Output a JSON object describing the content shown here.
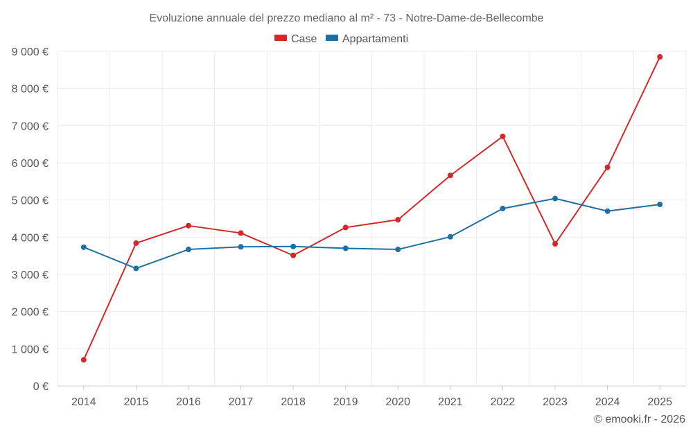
{
  "chart_data": {
    "type": "line",
    "title": "Evoluzione annuale del prezzo mediano al m² - 73 - Notre-Dame-de-Bellecombe",
    "categories": [
      "2014",
      "2015",
      "2016",
      "2017",
      "2018",
      "2019",
      "2020",
      "2021",
      "2022",
      "2023",
      "2024",
      "2025"
    ],
    "series": [
      {
        "name": "Case",
        "color": "#d62728",
        "values": [
          700,
          3840,
          4310,
          4110,
          3510,
          4260,
          4470,
          5660,
          6710,
          3820,
          5880,
          8850
        ]
      },
      {
        "name": "Appartamenti",
        "color": "#1f6fa3",
        "values": [
          3730,
          3160,
          3670,
          3740,
          3750,
          3700,
          3670,
          4010,
          4770,
          5040,
          4700,
          4880
        ]
      }
    ],
    "ylim": [
      0,
      9000
    ],
    "yticks": [
      0,
      1000,
      2000,
      3000,
      4000,
      5000,
      6000,
      7000,
      8000,
      9000
    ],
    "ytick_labels": [
      "0 €",
      "1 000 €",
      "2 000 €",
      "3 000 €",
      "4 000 €",
      "5 000 €",
      "6 000 €",
      "7 000 €",
      "8 000 €",
      "9 000 €"
    ],
    "xlabel": "",
    "ylabel": "",
    "grid": true,
    "legend_position": "top-center",
    "credit": "© emooki.fr - 2026"
  }
}
